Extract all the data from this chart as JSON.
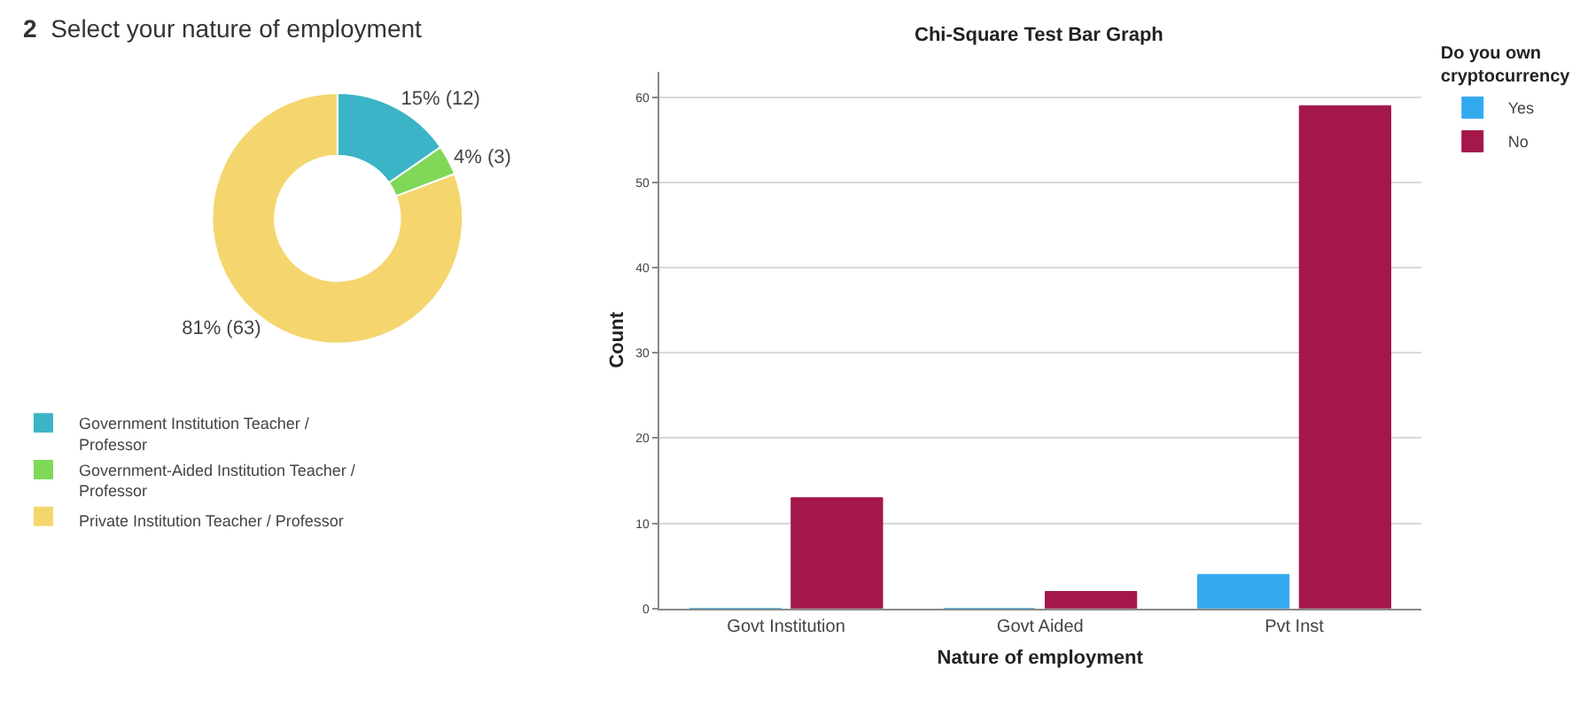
{
  "chart_data": [
    {
      "type": "donut",
      "title": "2 Select your nature of employment",
      "categories": [
        "Government Institution Teacher / Professor",
        "Government-Aided Institution Teacher / Professor",
        "Private Institution Teacher / Professor"
      ],
      "values": [
        12,
        3,
        63
      ],
      "value_labels": [
        "15% (12)",
        "4% (3)",
        "81% (63)"
      ],
      "colors": [
        "#3ab4c6",
        "#7fd858",
        "#f5d66e"
      ],
      "legend": "bottom"
    },
    {
      "type": "bar",
      "title": "Chi-Square Test Bar Graph",
      "xlabel": "Nature of employment",
      "ylabel": "Count",
      "legend_title": "Do you own cryptocurrency",
      "categories": [
        "Govt Institution",
        "Govt Aided",
        "Pvt Inst"
      ],
      "series": [
        {
          "name": "Yes",
          "color": "#33a9f0",
          "values": [
            0,
            0,
            4
          ]
        },
        {
          "name": "No",
          "color": "#a3174a",
          "values": [
            13,
            2,
            59
          ]
        }
      ],
      "ylim": [
        0,
        63
      ],
      "yticks": [
        0,
        10,
        20,
        30,
        40,
        50,
        60
      ],
      "grid": "y",
      "legend": "top right"
    }
  ]
}
